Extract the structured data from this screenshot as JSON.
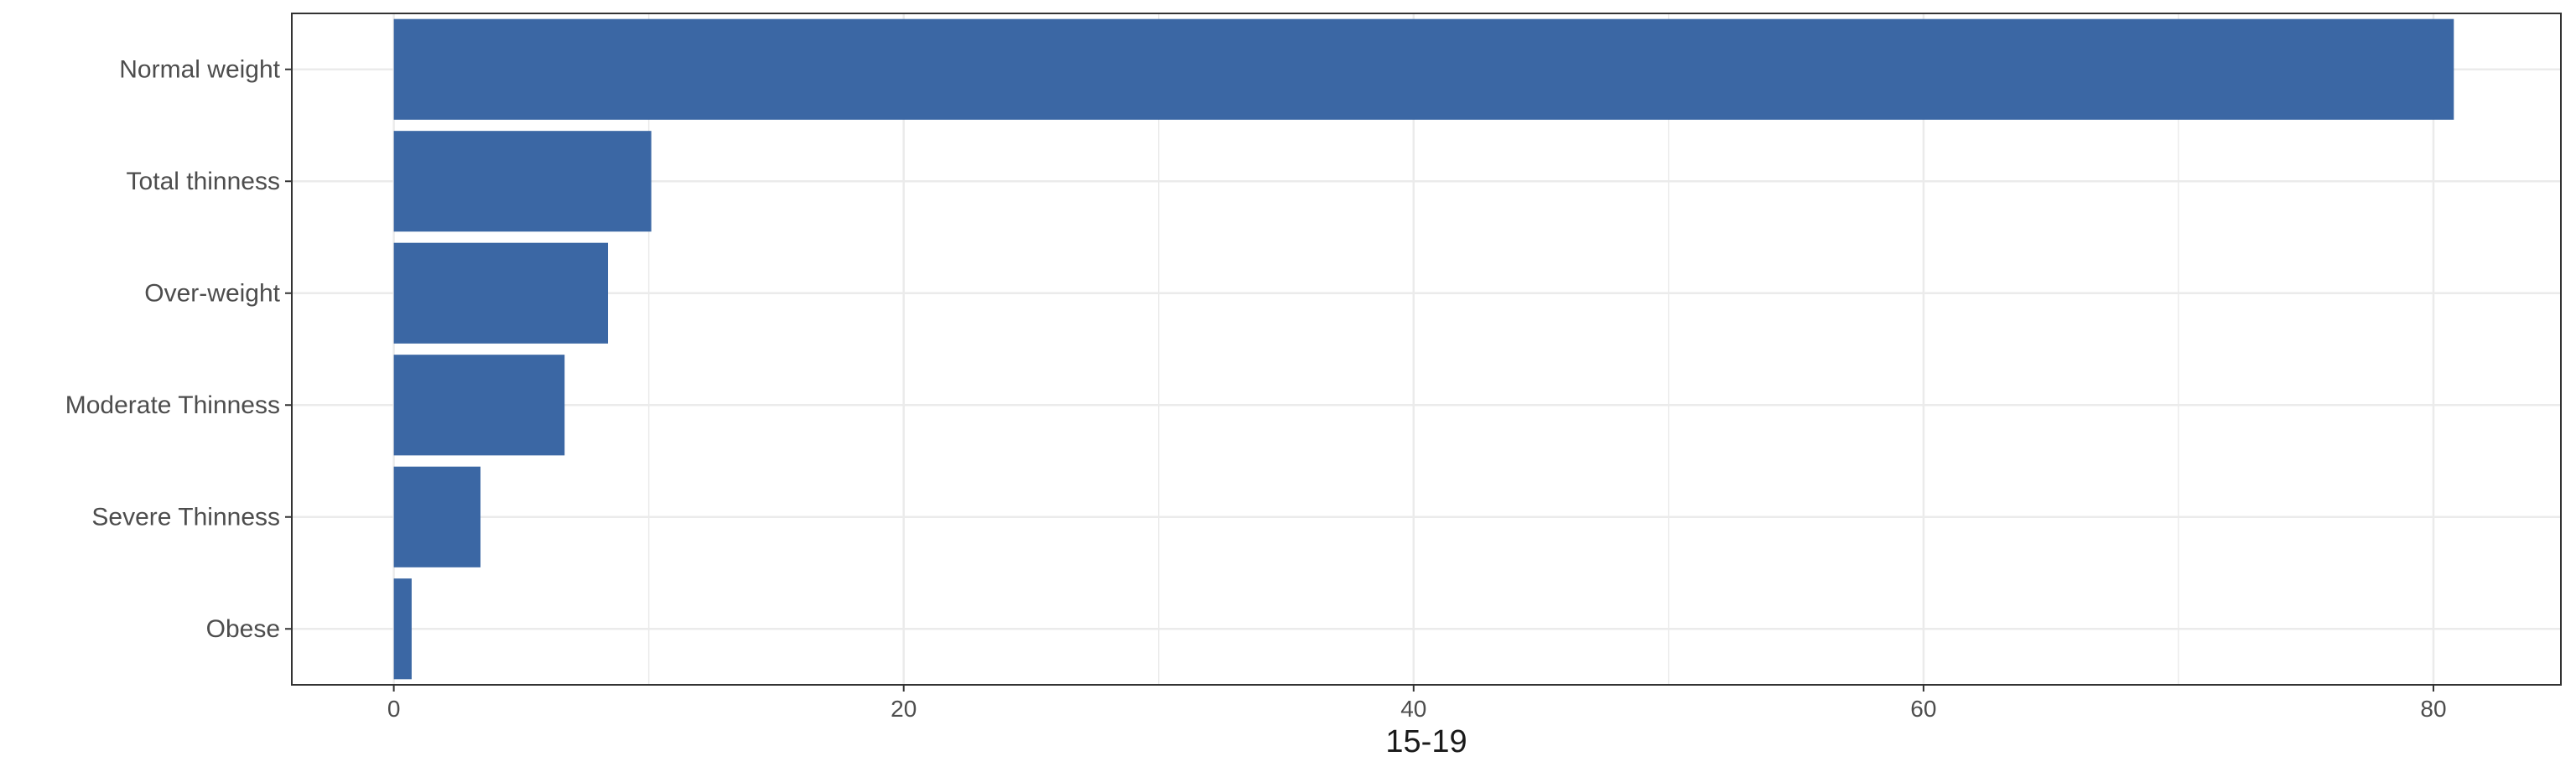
{
  "chart_data": {
    "type": "bar",
    "orientation": "horizontal",
    "categories": [
      "Normal weight",
      "Total thinness",
      "Over-weight",
      "Moderate Thinness",
      "Severe Thinness",
      "Obese"
    ],
    "values": [
      80.8,
      10.1,
      8.4,
      6.7,
      3.4,
      0.7
    ],
    "xlabel": "15-19",
    "ylabel": "",
    "xlim": [
      -4,
      85
    ],
    "x_ticks": [
      0,
      20,
      40,
      60,
      80
    ],
    "grid": true,
    "bar_color": "#3B67A4",
    "grid_color": "#EBEBEB",
    "panel_border_color": "#333333"
  }
}
